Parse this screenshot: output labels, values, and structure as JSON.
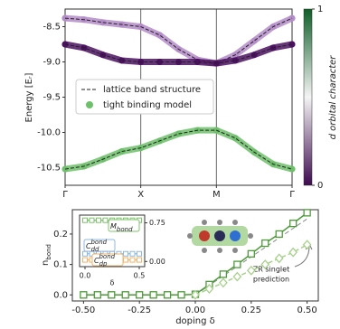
{
  "chart_data": [
    {
      "type": "line",
      "ylabel": "Energy [Eᵣ]",
      "x": [
        0,
        0.25,
        0.5,
        0.75,
        1,
        1.25,
        1.5,
        1.75,
        2,
        2.25,
        2.5,
        2.75,
        3
      ],
      "xlim": [
        0,
        3
      ],
      "xticks": [
        {
          "value": 0,
          "label": "Γ"
        },
        {
          "value": 1,
          "label": "X"
        },
        {
          "value": 2,
          "label": "M"
        },
        {
          "value": 3,
          "label": "Γ"
        }
      ],
      "ylim": [
        -10.75,
        -8.25
      ],
      "yticks": [
        -8.5,
        {
          "value": -9.0,
          "label": "-9.0"
        },
        -9.5,
        {
          "value": -10.0,
          "label": "-10.0"
        },
        -10.5
      ],
      "bands": [
        {
          "color": "#b48cc8",
          "values": [
            -8.38,
            -8.4,
            -8.44,
            -8.47,
            -8.5,
            -8.62,
            -8.82,
            -8.97,
            -9.02,
            -8.9,
            -8.7,
            -8.5,
            -8.38
          ]
        },
        {
          "color": "#4b1060",
          "values": [
            -8.75,
            -8.8,
            -8.9,
            -8.98,
            -9.0,
            -9.0,
            -9.0,
            -9.0,
            -9.02,
            -8.98,
            -8.9,
            -8.8,
            -8.75
          ]
        },
        {
          "color": "#6dbf6a",
          "values": [
            -10.52,
            -10.48,
            -10.38,
            -10.27,
            -10.22,
            -10.12,
            -10.02,
            -9.97,
            -9.97,
            -10.08,
            -10.28,
            -10.45,
            -10.52
          ]
        }
      ],
      "legend": [
        "lattice band structure",
        "tight binding model"
      ],
      "colorbar": {
        "label": "d orbital character",
        "lim": [
          0,
          1
        ],
        "ticks": [
          0,
          1
        ],
        "colormap": [
          "#3d0a4f",
          "#f4f4f4",
          "#0f5e28"
        ]
      }
    },
    {
      "type": "line",
      "xlabel": "doping δ",
      "ylabel": {
        "text": "n",
        "sub": "bond"
      },
      "x": [
        -0.5,
        -0.4375,
        -0.375,
        -0.3125,
        -0.25,
        -0.1875,
        -0.125,
        -0.0625,
        0,
        0.0625,
        0.125,
        0.1875,
        0.25,
        0.3125,
        0.375,
        0.4375,
        0.5
      ],
      "xlim": [
        -0.55,
        0.55
      ],
      "xticks": [
        {
          "value": -0.5,
          "label": "-0.50"
        },
        -0.25,
        {
          "value": 0,
          "label": "0.00"
        },
        0.25,
        {
          "value": 0.5,
          "label": "0.50"
        }
      ],
      "ylim": [
        -0.02,
        0.28
      ],
      "yticks": [
        {
          "value": 0,
          "label": "0.0"
        },
        0.1,
        0.2
      ],
      "series": [
        {
          "color": "#4e9a3a",
          "marker": "square",
          "values": [
            0,
            0,
            0,
            0,
            0,
            0,
            0,
            0,
            0.002,
            0.034,
            0.068,
            0.1,
            0.135,
            0.17,
            0.2,
            0.235,
            0.27
          ]
        },
        {
          "color": "#a8d08d",
          "marker": "diamond",
          "dashed": true,
          "values": [
            null,
            null,
            null,
            null,
            null,
            null,
            null,
            null,
            0,
            0.02,
            0.04,
            0.06,
            0.08,
            0.1,
            0.12,
            0.14,
            0.165
          ]
        }
      ],
      "prediction": {
        "color": "#888888",
        "x": [
          0,
          0.5
        ],
        "values": [
          0,
          0.25
        ]
      },
      "annotation": [
        "ZR singlet",
        "prediction"
      ]
    },
    {
      "type": "line",
      "xlabel": "δ",
      "x": [
        0,
        0.0625,
        0.125,
        0.1875,
        0.25,
        0.3125,
        0.375,
        0.4375,
        0.5
      ],
      "xlim": [
        -0.05,
        0.55
      ],
      "xticks": [
        {
          "value": 0,
          "label": "0.0"
        },
        {
          "value": 0.5,
          "label": "0.5"
        }
      ],
      "ylim": [
        -0.1,
        0.9
      ],
      "yticks": [
        {
          "value": 0,
          "label": "0.00"
        },
        0.75
      ],
      "series": [
        {
          "name": "M",
          "sub": "bond",
          "color": "#7cc46a",
          "values": [
            0.8,
            0.8,
            0.8,
            0.8,
            0.8,
            0.8,
            0.8,
            0.8,
            0.8
          ]
        },
        {
          "name": "C",
          "sub": "dd",
          "sup": "bond",
          "color": "#8fb8e0",
          "values": [
            0.15,
            0.15,
            0.15,
            0.15,
            0.15,
            0.15,
            0.15,
            0.15,
            0.15
          ]
        },
        {
          "name": "C",
          "sub": "dp",
          "sup": "bond",
          "color": "#f2b46b",
          "values": [
            0.03,
            0.03,
            0.03,
            0.03,
            0.03,
            0.03,
            0.03,
            0.03,
            0.03
          ]
        }
      ]
    }
  ]
}
